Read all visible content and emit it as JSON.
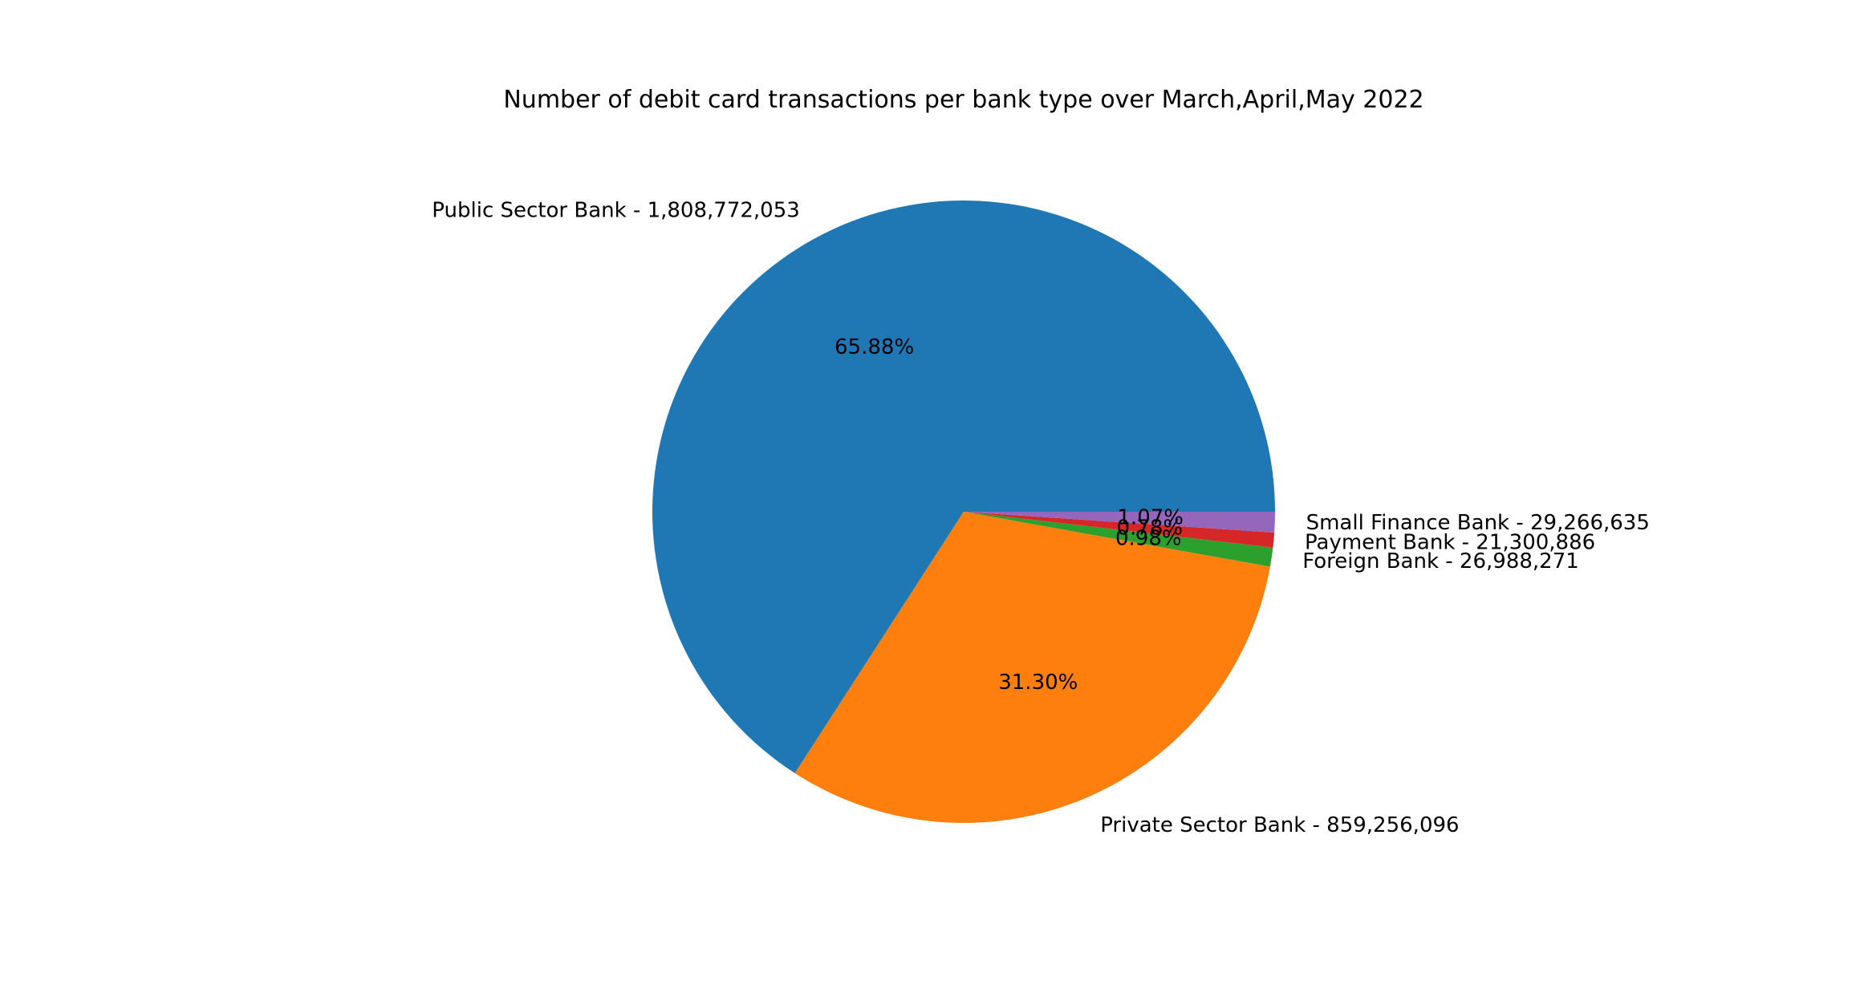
{
  "chart_data": {
    "type": "pie",
    "title": "Number of debit card transactions per bank type over March,April,May 2022",
    "labels": [
      "Public Sector Bank - 1,808,772,053",
      "Private Sector Bank - 859,256,096",
      "Foreign Bank - 26,988,271",
      "Payment Bank - 21,300,886",
      "Small Finance Bank - 29,266,635"
    ],
    "values": [
      1808772053,
      859256096,
      26988271,
      21300886,
      29266635
    ],
    "percent_labels": [
      "65.88%",
      "31.30%",
      "0.98%",
      "0.78%",
      "1.07%"
    ],
    "colors": [
      "#1f77b4",
      "#ff7f0e",
      "#2ca02c",
      "#d62728",
      "#9467bd"
    ],
    "start_angle_deg": 0,
    "direction": "counterclockwise",
    "legend": "none"
  }
}
